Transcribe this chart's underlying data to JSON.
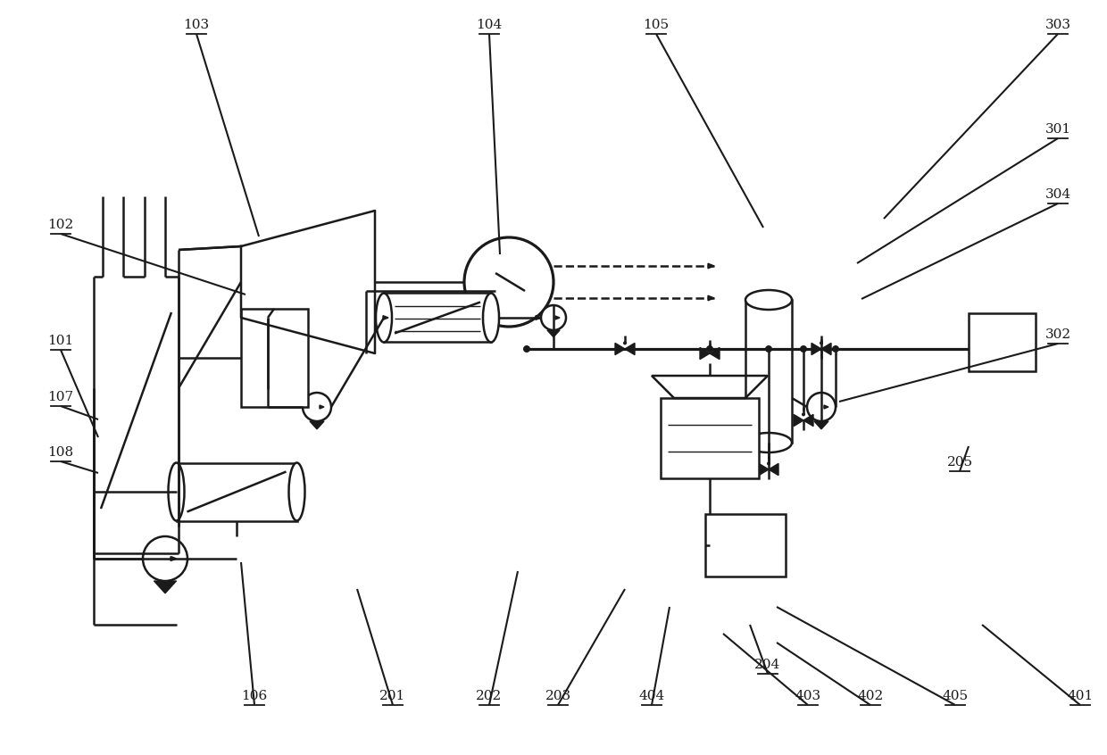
{
  "bg_color": "#ffffff",
  "lc": "#1a1a1a",
  "lw": 1.8
}
